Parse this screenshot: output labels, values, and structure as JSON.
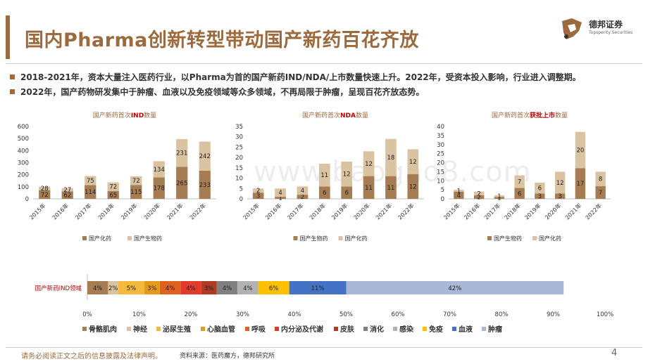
{
  "header": {
    "title": "国内Pharma创新转型带动国产新药百花齐放",
    "logo_name": "德邦证券",
    "logo_en": "Topsperity Securities"
  },
  "bullets": [
    "2018-2021年，资本大量注入医药行业，以Pharma为首的国产新药IND/NDA/上市数量快速上升。2022年，受资本投入影响，行业进入调整期。",
    "2022年，国产药物研发集中于肿瘤、血液以及免疫领域等众多领域，不再局限于肿瘤，呈现百花齐放态势。"
  ],
  "watermark": "www.baogao8.com",
  "footer": {
    "disclaimer": "请务必阅读正文之后的信息披露及法律声明。",
    "source": "资料来源：医药魔方，德邦研究所",
    "page": "4"
  },
  "colors": {
    "brand": "#9C6A3C",
    "dark_series": "#A67C52",
    "light_series": "#D9C3A0",
    "highlight": "#C00000"
  },
  "chart_data": [
    {
      "type": "bar",
      "stacked": true,
      "title_parts": [
        "国产新药首次",
        "IND",
        "数量"
      ],
      "categories": [
        "2015年",
        "2016年",
        "2017年",
        "2018年",
        "2019年",
        "2020年",
        "2021年",
        "2022年"
      ],
      "series": [
        {
          "name": "国产化药",
          "values": [
            72,
            62,
            114,
            65,
            115,
            178,
            265,
            233
          ],
          "color": "#A67C52"
        },
        {
          "name": "国产生物药",
          "values": [
            28,
            27,
            75,
            72,
            72,
            134,
            231,
            242
          ],
          "color": "#D9C3A0"
        }
      ],
      "ylim": [
        0,
        600
      ],
      "yticks": [
        0,
        100,
        200,
        300,
        400,
        500,
        600
      ],
      "legend": "bottom"
    },
    {
      "type": "bar",
      "stacked": true,
      "title_parts": [
        "国产新药首次",
        "NDA",
        "数量"
      ],
      "categories": [
        "2015年",
        "2016年",
        "2017年",
        "2018年",
        "2019年",
        "2020年",
        "2021年",
        "2022年"
      ],
      "series": [
        {
          "name": "国产生物药",
          "values": [
            3,
            1,
            2,
            6,
            6,
            11,
            11,
            12
          ],
          "color": "#A67C52"
        },
        {
          "name": "国产化药",
          "values": [
            2,
            4,
            4,
            11,
            12,
            12,
            18,
            12
          ],
          "color": "#D9C3A0"
        }
      ],
      "ylim": [
        0,
        35
      ],
      "yticks": [
        0,
        5,
        10,
        15,
        20,
        25,
        30,
        35
      ],
      "legend": "bottom"
    },
    {
      "type": "bar",
      "stacked": true,
      "title_parts": [
        "国产新药首次",
        "获批上市",
        "数量"
      ],
      "categories": [
        "2015年",
        "2016年",
        "2017年",
        "2018年",
        "2019年",
        "2020年",
        "2021年",
        "2022年"
      ],
      "series": [
        {
          "name": "国产生物药",
          "values": [
            4,
            2,
            1,
            6,
            3,
            3,
            17,
            7
          ],
          "color": "#A67C52"
        },
        {
          "name": "国产化药",
          "values": [
            1,
            2,
            1,
            7,
            6,
            12,
            20,
            8
          ],
          "color": "#D9C3A0"
        }
      ],
      "ylim": [
        0,
        40
      ],
      "yticks": [
        0,
        5,
        10,
        15,
        20,
        25,
        30,
        35,
        40
      ],
      "legend": "bottom"
    },
    {
      "type": "bar",
      "stacked": true,
      "orientation": "horizontal",
      "category_label": "国产新药IND领域",
      "xlim": [
        0,
        100
      ],
      "xticks": [
        "0%",
        "10%",
        "20%",
        "30%",
        "40%",
        "50%",
        "60%",
        "70%",
        "80%",
        "90%",
        "100%"
      ],
      "segments": [
        {
          "name": "骨骼肌肉",
          "value": 4,
          "label": "4%",
          "color": "#A67C52"
        },
        {
          "name": "神经",
          "value": 2,
          "label": "2%",
          "color": "#D9C3A0"
        },
        {
          "name": "泌尿生殖",
          "value": 5,
          "label": "5%",
          "color": "#F3B93B"
        },
        {
          "name": "心脑血管",
          "value": 3,
          "label": "3%",
          "color": "#E69A1A"
        },
        {
          "name": "呼吸",
          "value": 4,
          "label": "4%",
          "color": "#E0621E"
        },
        {
          "name": "内分泌及代谢",
          "value": 4,
          "label": "4%",
          "color": "#E23B2B"
        },
        {
          "name": "皮肤",
          "value": 3,
          "label": "3%",
          "color": "#B03A22"
        },
        {
          "name": "消化",
          "value": 4,
          "label": "4%",
          "color": "#808080"
        },
        {
          "name": "感染",
          "value": 4,
          "label": "4%",
          "color": "#B2B2B2"
        },
        {
          "name": "免疫",
          "value": 6,
          "label": "6%",
          "color": "#FFC000"
        },
        {
          "name": "血液",
          "value": 11,
          "label": "11%",
          "color": "#4472C4"
        },
        {
          "name": "肿瘤",
          "value": 42,
          "label": "42%",
          "color": "#A9B8D6"
        }
      ],
      "legend": "bottom"
    }
  ]
}
